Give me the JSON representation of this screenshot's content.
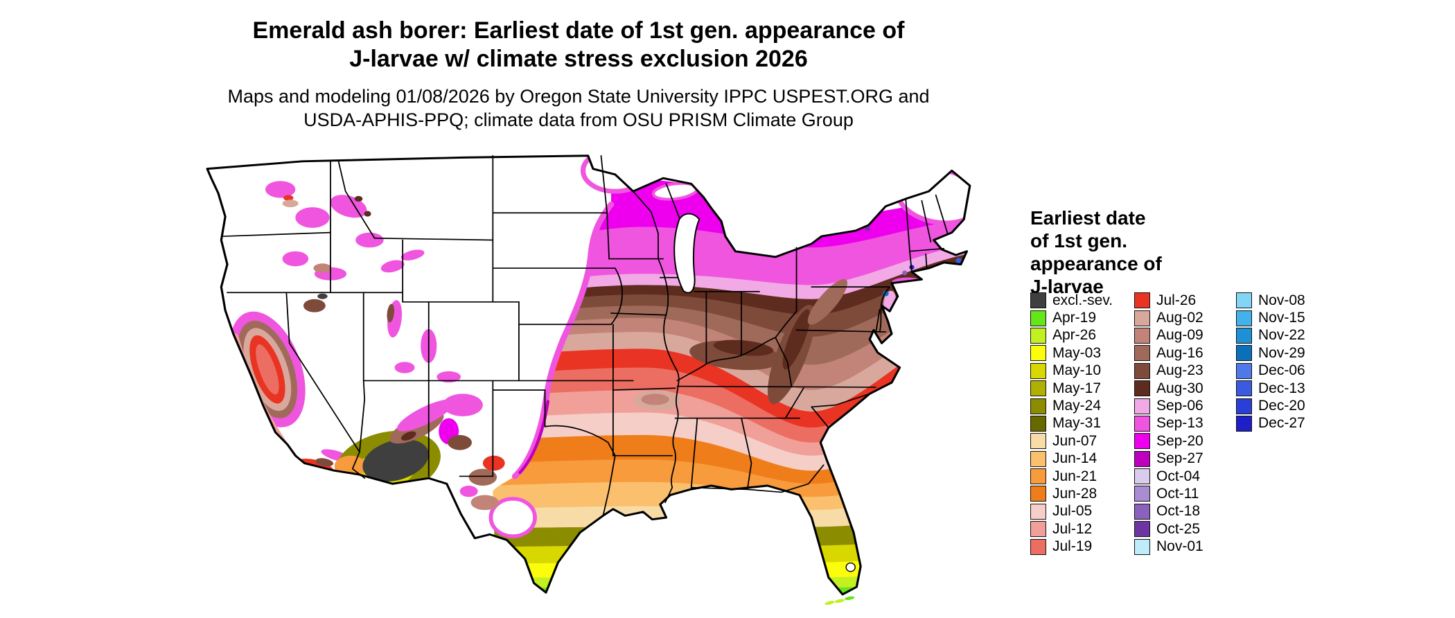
{
  "title": {
    "line1": "Emerald ash borer: Earliest date of 1st gen. appearance of",
    "line2": "J-larvae w/ climate stress exclusion 2026"
  },
  "subtitle": {
    "line1": "Maps and modeling 01/08/2026 by Oregon State University IPPC USPEST.ORG and",
    "line2": "USDA-APHIS-PPQ; climate data from OSU PRISM Climate Group"
  },
  "legend": {
    "title_lines": [
      "Earliest date",
      "of 1st gen.",
      "appearance of",
      "J-larvae"
    ],
    "columns": [
      [
        {
          "label": "excl.-sev.",
          "color": "#3F3F3F"
        },
        {
          "label": "Apr-19",
          "color": "#64E619"
        },
        {
          "label": "Apr-26",
          "color": "#C3F021"
        },
        {
          "label": "May-03",
          "color": "#FCFC0D"
        },
        {
          "label": "May-10",
          "color": "#D8D800"
        },
        {
          "label": "May-17",
          "color": "#B0B000"
        },
        {
          "label": "May-24",
          "color": "#8C8C00"
        },
        {
          "label": "May-31",
          "color": "#686800"
        },
        {
          "label": "Jun-07",
          "color": "#F8DCA8"
        },
        {
          "label": "Jun-14",
          "color": "#FBC06E"
        },
        {
          "label": "Jun-21",
          "color": "#F89B3C"
        },
        {
          "label": "Jun-28",
          "color": "#EF7D1A"
        },
        {
          "label": "Jul-05",
          "color": "#F6CEC8"
        },
        {
          "label": "Jul-12",
          "color": "#F0A098"
        },
        {
          "label": "Jul-19",
          "color": "#EC6E62"
        }
      ],
      [
        {
          "label": "Jul-26",
          "color": "#E93323"
        },
        {
          "label": "Aug-02",
          "color": "#D9A89C"
        },
        {
          "label": "Aug-09",
          "color": "#C28478"
        },
        {
          "label": "Aug-16",
          "color": "#A06A5A"
        },
        {
          "label": "Aug-23",
          "color": "#7E4A3A"
        },
        {
          "label": "Aug-30",
          "color": "#5E2C1E"
        },
        {
          "label": "Sep-06",
          "color": "#F2AAE6"
        },
        {
          "label": "Sep-13",
          "color": "#F055E0"
        },
        {
          "label": "Sep-20",
          "color": "#EE00EE"
        },
        {
          "label": "Sep-27",
          "color": "#BE00BE"
        },
        {
          "label": "Oct-04",
          "color": "#DACCEC"
        },
        {
          "label": "Oct-11",
          "color": "#AA8CD2"
        },
        {
          "label": "Oct-18",
          "color": "#8A62BE"
        },
        {
          "label": "Oct-25",
          "color": "#6C35A2"
        },
        {
          "label": "Nov-01",
          "color": "#BEECFA"
        }
      ],
      [
        {
          "label": "Nov-08",
          "color": "#82D5F4"
        },
        {
          "label": "Nov-15",
          "color": "#41B2EA"
        },
        {
          "label": "Nov-22",
          "color": "#1E90D6"
        },
        {
          "label": "Nov-29",
          "color": "#0B70BA"
        },
        {
          "label": "Dec-06",
          "color": "#4F79E8"
        },
        {
          "label": "Dec-13",
          "color": "#3A5BE0"
        },
        {
          "label": "Dec-20",
          "color": "#2A3ED8"
        },
        {
          "label": "Dec-27",
          "color": "#1F1FC8"
        }
      ]
    ]
  }
}
